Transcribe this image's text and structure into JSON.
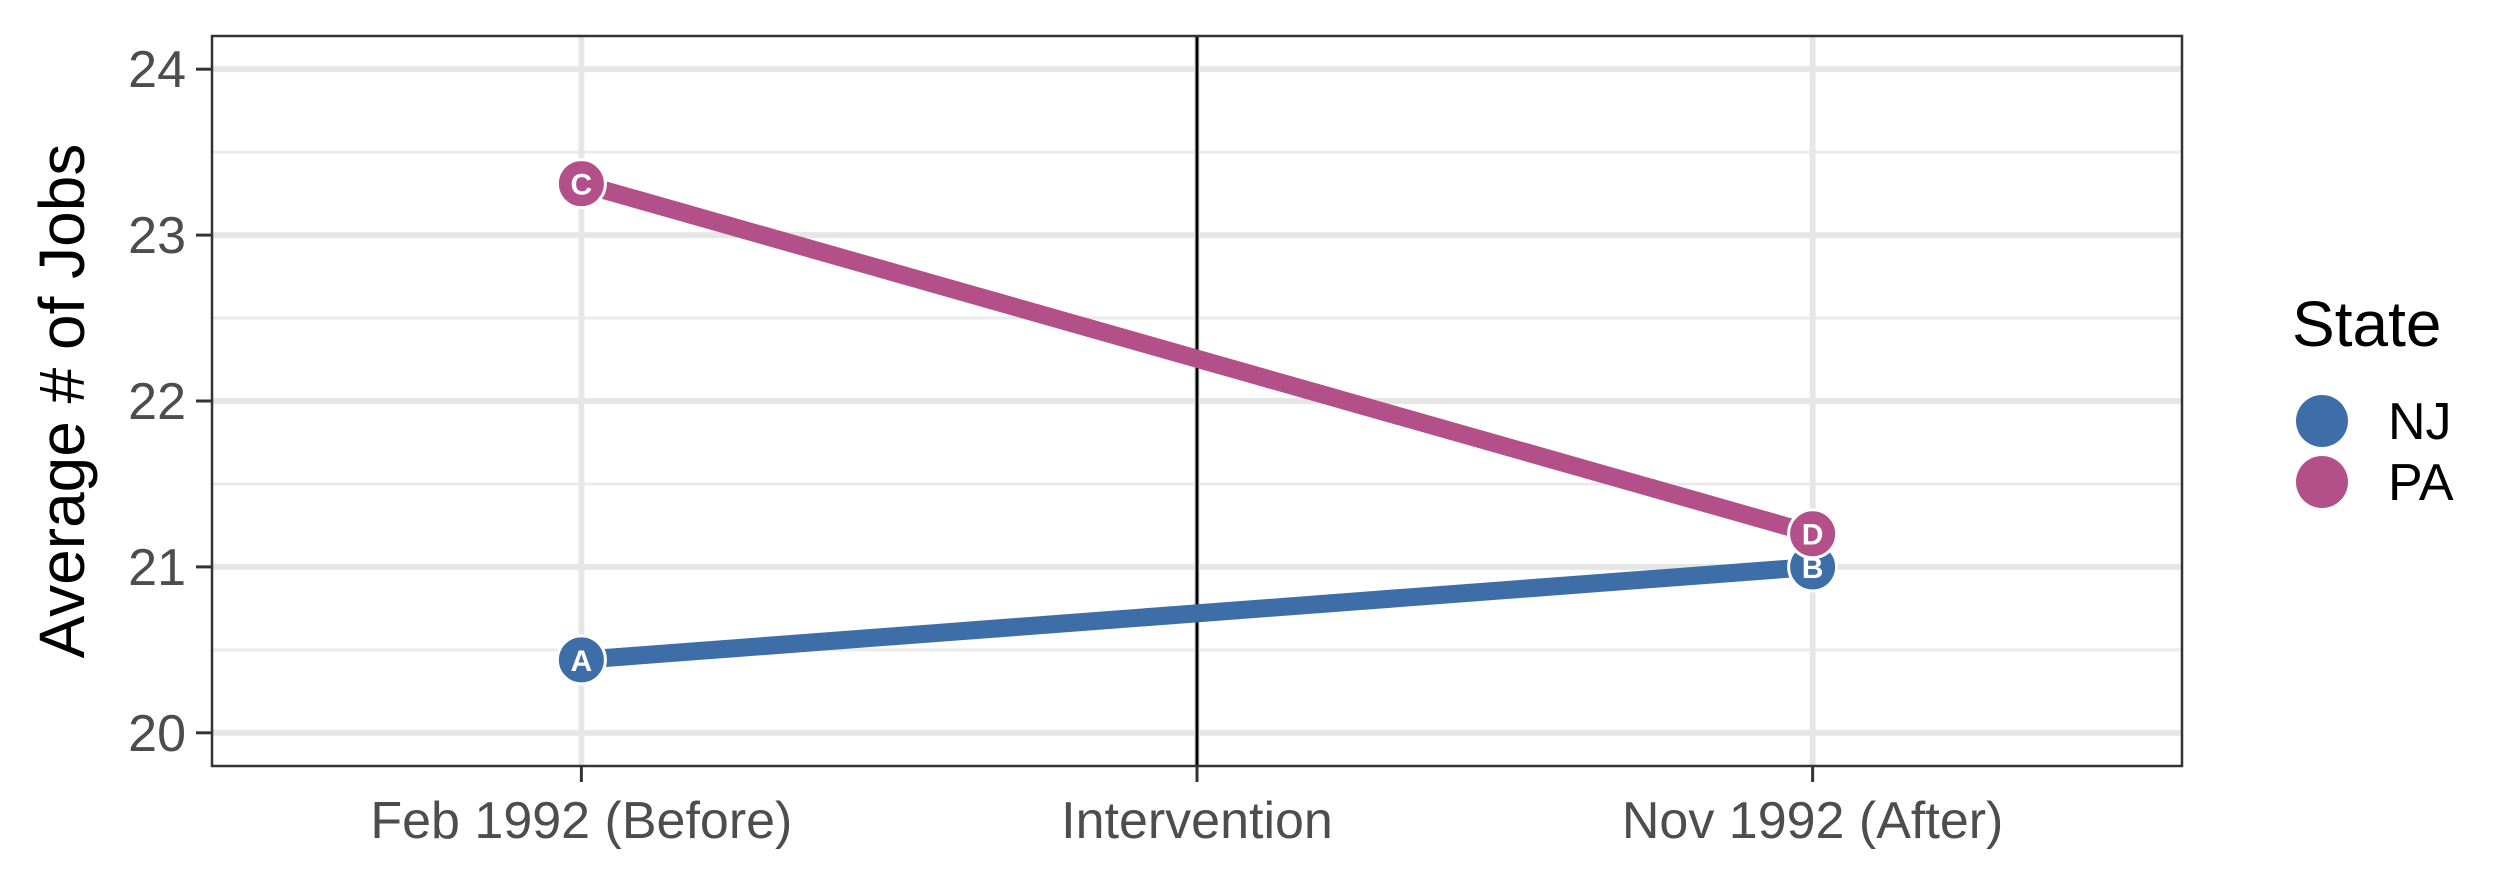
{
  "chart_data": {
    "type": "line",
    "categories": [
      "Feb 1992 (Before)",
      "Intervention",
      "Nov 1992 (After)"
    ],
    "x_positions": [
      0,
      1,
      2
    ],
    "xlim": [
      -0.6,
      2.6
    ],
    "ylabel": "Average # of Jobs",
    "ylim": [
      19.8,
      24.2
    ],
    "yticks": [
      20,
      21,
      22,
      23,
      24
    ],
    "grid": true,
    "vertical_line": {
      "x": 1,
      "label": "Intervention"
    },
    "series": [
      {
        "name": "NJ",
        "color": "#3d6ea8",
        "x": [
          0,
          2
        ],
        "values": [
          20.44,
          21.0
        ],
        "point_labels": [
          "A",
          "B"
        ]
      },
      {
        "name": "PA",
        "color": "#b3508a",
        "x": [
          0,
          2
        ],
        "values": [
          23.31,
          21.2
        ],
        "point_labels": [
          "C",
          "D"
        ]
      }
    ],
    "legend": {
      "title": "State",
      "position": "right",
      "items": [
        "NJ",
        "PA"
      ]
    }
  }
}
